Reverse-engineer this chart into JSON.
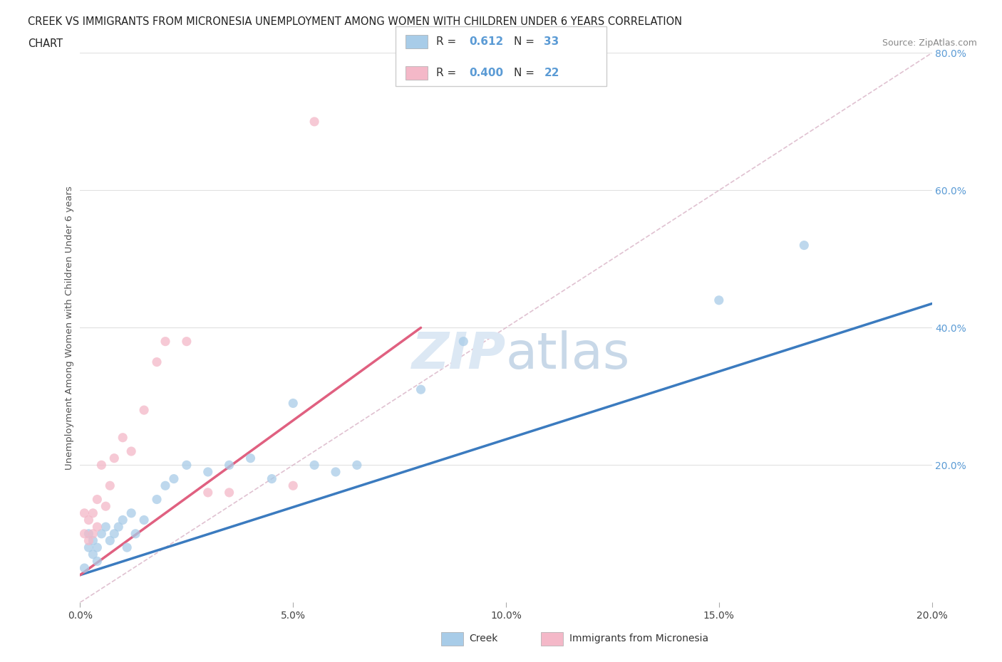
{
  "title_line1": "CREEK VS IMMIGRANTS FROM MICRONESIA UNEMPLOYMENT AMONG WOMEN WITH CHILDREN UNDER 6 YEARS CORRELATION",
  "title_line2": "CHART",
  "source": "Source: ZipAtlas.com",
  "ylabel": "Unemployment Among Women with Children Under 6 years",
  "legend_label1": "Creek",
  "legend_label2": "Immigrants from Micronesia",
  "R1": 0.612,
  "N1": 33,
  "R2": 0.4,
  "N2": 22,
  "xlim": [
    0.0,
    0.2
  ],
  "ylim": [
    0.0,
    0.8
  ],
  "xticks": [
    0.0,
    0.05,
    0.1,
    0.15,
    0.2
  ],
  "yticks": [
    0.2,
    0.4,
    0.6,
    0.8
  ],
  "color_creek": "#a8cce8",
  "color_micronesia": "#f4b8c8",
  "color_creek_line": "#3b7bbf",
  "color_micronesia_line": "#e06080",
  "color_diag_line": "#ddbbcc",
  "watermark_color": "#dce8f4",
  "creek_x": [
    0.001,
    0.002,
    0.002,
    0.003,
    0.003,
    0.004,
    0.004,
    0.005,
    0.006,
    0.007,
    0.008,
    0.009,
    0.01,
    0.011,
    0.012,
    0.013,
    0.015,
    0.018,
    0.02,
    0.022,
    0.025,
    0.03,
    0.035,
    0.04,
    0.045,
    0.05,
    0.055,
    0.06,
    0.065,
    0.08,
    0.09,
    0.15,
    0.17
  ],
  "creek_y": [
    0.05,
    0.08,
    0.1,
    0.07,
    0.09,
    0.06,
    0.08,
    0.1,
    0.11,
    0.09,
    0.1,
    0.11,
    0.12,
    0.08,
    0.13,
    0.1,
    0.12,
    0.15,
    0.17,
    0.18,
    0.2,
    0.19,
    0.2,
    0.21,
    0.18,
    0.29,
    0.2,
    0.19,
    0.2,
    0.31,
    0.38,
    0.44,
    0.52
  ],
  "micronesia_x": [
    0.001,
    0.001,
    0.002,
    0.002,
    0.003,
    0.003,
    0.004,
    0.004,
    0.005,
    0.006,
    0.007,
    0.008,
    0.01,
    0.012,
    0.015,
    0.018,
    0.02,
    0.025,
    0.03,
    0.035,
    0.05,
    0.055
  ],
  "micronesia_y": [
    0.1,
    0.13,
    0.09,
    0.12,
    0.1,
    0.13,
    0.11,
    0.15,
    0.2,
    0.14,
    0.17,
    0.21,
    0.24,
    0.22,
    0.28,
    0.35,
    0.38,
    0.38,
    0.16,
    0.16,
    0.17,
    0.7
  ],
  "creek_line_x0": 0.0,
  "creek_line_y0": 0.04,
  "creek_line_x1": 0.2,
  "creek_line_y1": 0.435,
  "mic_line_x0": 0.0,
  "mic_line_y0": 0.04,
  "mic_line_x1": 0.08,
  "mic_line_y1": 0.4
}
